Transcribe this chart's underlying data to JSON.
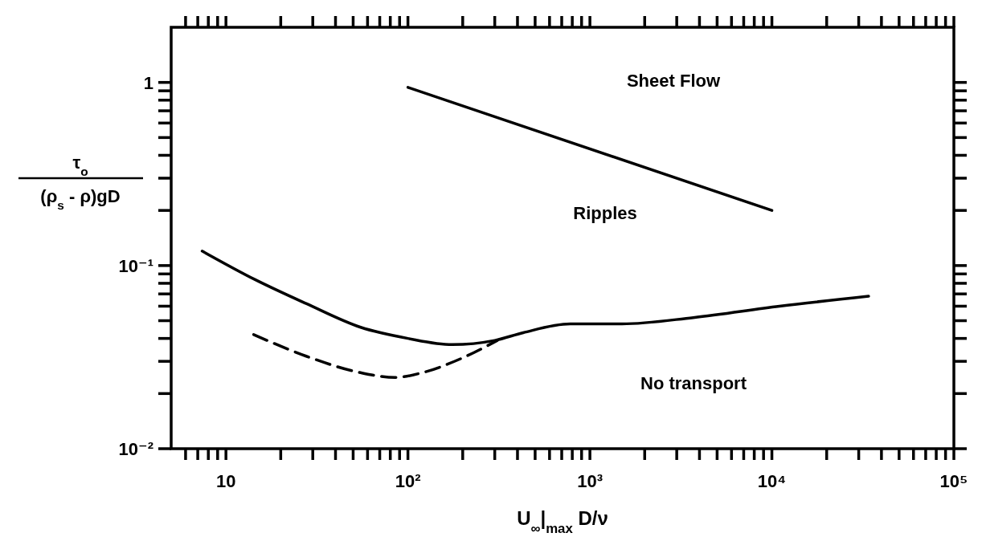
{
  "chart_data": {
    "type": "line",
    "xlabel": "U$_{∞}$|$_{max}$ D/ν",
    "ylabel": "τ$_{o}$\n(ρ$_{s}$ - ρ)gD",
    "log": "xy",
    "grid": false,
    "xlim": [
      5,
      100000
    ],
    "ylim": [
      0.01,
      2
    ],
    "xticks": [
      {
        "value": 6,
        "label": null
      },
      {
        "value": 7,
        "label": null
      },
      {
        "value": 8,
        "label": null
      },
      {
        "value": 9,
        "label": null
      },
      {
        "value": 10,
        "label": "10"
      },
      {
        "value": 20,
        "label": null
      },
      {
        "value": 30,
        "label": null
      },
      {
        "value": 40,
        "label": null
      },
      {
        "value": 50,
        "label": null
      },
      {
        "value": 60,
        "label": null
      },
      {
        "value": 70,
        "label": null
      },
      {
        "value": 80,
        "label": null
      },
      {
        "value": 90,
        "label": null
      },
      {
        "value": 100,
        "label": "10²"
      },
      {
        "value": 200,
        "label": null
      },
      {
        "value": 300,
        "label": null
      },
      {
        "value": 400,
        "label": null
      },
      {
        "value": 500,
        "label": null
      },
      {
        "value": 600,
        "label": null
      },
      {
        "value": 700,
        "label": null
      },
      {
        "value": 800,
        "label": null
      },
      {
        "value": 900,
        "label": null
      },
      {
        "value": 1000,
        "label": "10³"
      },
      {
        "value": 2000,
        "label": null
      },
      {
        "value": 3000,
        "label": null
      },
      {
        "value": 4000,
        "label": null
      },
      {
        "value": 5000,
        "label": null
      },
      {
        "value": 6000,
        "label": null
      },
      {
        "value": 7000,
        "label": null
      },
      {
        "value": 8000,
        "label": null
      },
      {
        "value": 9000,
        "label": null
      },
      {
        "value": 10000,
        "label": "10⁴"
      },
      {
        "value": 20000,
        "label": null
      },
      {
        "value": 30000,
        "label": null
      },
      {
        "value": 40000,
        "label": null
      },
      {
        "value": 50000,
        "label": null
      },
      {
        "value": 60000,
        "label": null
      },
      {
        "value": 70000,
        "label": null
      },
      {
        "value": 80000,
        "label": null
      },
      {
        "value": 90000,
        "label": null
      },
      {
        "value": 100000,
        "label": "10⁵"
      }
    ],
    "yticks": [
      {
        "value": 0.01,
        "label": "10⁻²"
      },
      {
        "value": 0.02,
        "label": null
      },
      {
        "value": 0.03,
        "label": null
      },
      {
        "value": 0.04,
        "label": null
      },
      {
        "value": 0.05,
        "label": null
      },
      {
        "value": 0.06,
        "label": null
      },
      {
        "value": 0.07,
        "label": null
      },
      {
        "value": 0.08,
        "label": null
      },
      {
        "value": 0.09,
        "label": null
      },
      {
        "value": 0.1,
        "label": "10⁻¹"
      },
      {
        "value": 0.2,
        "label": null
      },
      {
        "value": 0.3,
        "label": null
      },
      {
        "value": 0.4,
        "label": null
      },
      {
        "value": 0.5,
        "label": null
      },
      {
        "value": 0.6,
        "label": null
      },
      {
        "value": 0.7,
        "label": null
      },
      {
        "value": 0.8,
        "label": null
      },
      {
        "value": 0.9,
        "label": null
      },
      {
        "value": 1,
        "label": "1"
      }
    ],
    "series": [
      {
        "color": "#000000",
        "line_style": "solid",
        "x": [
          100,
          10000
        ],
        "values": [
          0.94,
          0.2
        ]
      },
      {
        "color": "#000000",
        "line_style": "solid",
        "x": [
          7.4,
          14.4,
          27.6,
          55,
          100,
          175,
          300,
          430,
          780,
          1500,
          3700,
          11000,
          34000
        ],
        "values": [
          0.12,
          0.084,
          0.062,
          0.046,
          0.04,
          0.037,
          0.039,
          0.043,
          0.048,
          0.048,
          0.052,
          0.06,
          0.068
        ]
      },
      {
        "color": "#000000",
        "line_style": "dashed",
        "x": [
          14.2,
          27.6,
          55,
          85,
          120,
          195,
          310
        ],
        "values": [
          0.042,
          0.032,
          0.026,
          0.0245,
          0.026,
          0.031,
          0.039
        ]
      }
    ],
    "annotations": [
      "Sheet Flow",
      "Ripples",
      "No transport"
    ]
  }
}
